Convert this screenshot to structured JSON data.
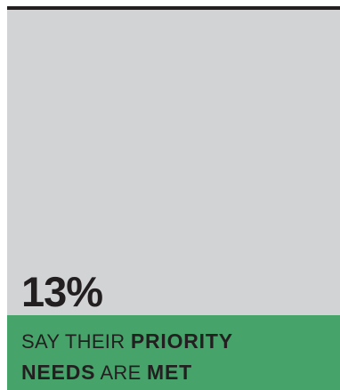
{
  "stat": {
    "value": "13%",
    "proportion_of_bar": 0.13
  },
  "caption": {
    "line1_plain": "SAY THEIR ",
    "line1_bold": "PRIORITY",
    "line2_bold": "NEEDS",
    "line2_plain": " ARE ",
    "line2_bold_end": "MET"
  },
  "colors": {
    "rule": "#231f20",
    "background_field": "#d1d3d4",
    "accent_green": "#46a369",
    "text": "#231f20"
  }
}
